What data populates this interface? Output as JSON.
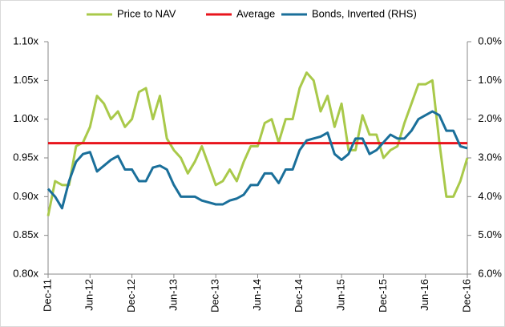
{
  "chart_data": {
    "type": "line",
    "categories": [
      "Dec-11",
      null,
      null,
      null,
      null,
      null,
      "Jun-12",
      null,
      null,
      null,
      null,
      null,
      "Dec-12",
      null,
      null,
      null,
      null,
      null,
      "Jun-13",
      null,
      null,
      null,
      null,
      null,
      "Dec-13",
      null,
      null,
      null,
      null,
      null,
      "Jun-14",
      null,
      null,
      null,
      null,
      null,
      "Dec-14",
      null,
      null,
      null,
      null,
      null,
      "Jun-15",
      null,
      null,
      null,
      null,
      null,
      "Dec-15",
      null,
      null,
      null,
      null,
      null,
      "Jun-16",
      null,
      null,
      null,
      null,
      null,
      "Dec-16"
    ],
    "series": [
      {
        "name": "Price to NAV",
        "color": "#a9c94a",
        "values": [
          0.875,
          0.92,
          0.915,
          0.915,
          0.965,
          0.97,
          0.99,
          1.03,
          1.02,
          1.0,
          1.01,
          0.99,
          1.0,
          1.035,
          1.04,
          1.0,
          1.03,
          0.975,
          0.96,
          0.95,
          0.93,
          0.945,
          0.965,
          0.94,
          0.915,
          0.92,
          0.935,
          0.92,
          0.945,
          0.965,
          0.965,
          0.995,
          1.0,
          0.97,
          1.0,
          1.0,
          1.04,
          1.06,
          1.05,
          1.01,
          1.03,
          0.99,
          1.02,
          0.96,
          0.96,
          1.005,
          0.98,
          0.98,
          0.95,
          0.96,
          0.965,
          0.995,
          1.02,
          1.045,
          1.045,
          1.05,
          0.97,
          0.9,
          0.9,
          0.92,
          0.95
        ]
      },
      {
        "name": "Average",
        "color": "#e8141c",
        "value": 0.969
      },
      {
        "name": "Bonds, Inverted (RHS)",
        "color": "#1a6f9a",
        "axis": "y2",
        "values": [
          3.8,
          4.0,
          4.3,
          3.6,
          3.1,
          2.9,
          2.85,
          3.35,
          3.2,
          3.05,
          2.95,
          3.3,
          3.3,
          3.6,
          3.6,
          3.25,
          3.2,
          3.3,
          3.7,
          4.0,
          4.0,
          4.0,
          4.1,
          4.15,
          4.2,
          4.2,
          4.1,
          4.05,
          3.95,
          3.7,
          3.7,
          3.4,
          3.4,
          3.65,
          3.3,
          3.3,
          2.8,
          2.55,
          2.5,
          2.45,
          2.35,
          2.9,
          3.05,
          2.9,
          2.5,
          2.5,
          2.9,
          2.8,
          2.6,
          2.4,
          2.5,
          2.5,
          2.3,
          2.0,
          1.9,
          1.8,
          1.9,
          2.3,
          2.3,
          2.7,
          2.75
        ]
      }
    ],
    "ylim": [
      0.8,
      1.1
    ],
    "yticks": [
      {
        "value": 0.8,
        "label": "0.80x"
      },
      {
        "value": 0.85,
        "label": "0.85x"
      },
      {
        "value": 0.9,
        "label": "0.90x"
      },
      {
        "value": 0.95,
        "label": "0.95x"
      },
      {
        "value": 1.0,
        "label": "1.00x"
      },
      {
        "value": 1.05,
        "label": "1.05x"
      },
      {
        "value": 1.1,
        "label": "1.10x"
      }
    ],
    "y2lim": [
      6,
      0
    ],
    "y2ticks": [
      {
        "value": 0,
        "label": "0.0%"
      },
      {
        "value": 1,
        "label": "1.0%"
      },
      {
        "value": 2,
        "label": "2.0%"
      },
      {
        "value": 3,
        "label": "3.0%"
      },
      {
        "value": 4,
        "label": "4.0%"
      },
      {
        "value": 5,
        "label": "5.0%"
      },
      {
        "value": 6,
        "label": "6.0%"
      }
    ],
    "legend": "top"
  }
}
